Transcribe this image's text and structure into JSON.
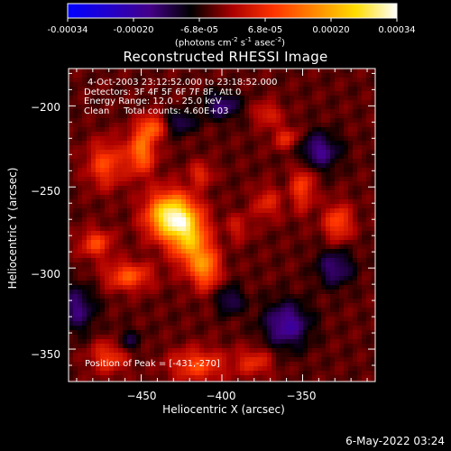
{
  "colorbar": {
    "tick_labels": [
      "-0.00034",
      "-0.00020",
      "-6.8e-05",
      "6.8e-05",
      "0.00020",
      "0.00034"
    ],
    "units": {
      "open": "(photons cm",
      "cm_exp": "-2",
      "s_part": " s",
      "s_exp": "-1",
      "asec_part": " asec",
      "asec_exp": "-2",
      "close": ")"
    },
    "colors": [
      "#0000ff",
      "#2200cc",
      "#440088",
      "#000000",
      "#aa0000",
      "#ff3300",
      "#ff8800",
      "#ffdd00",
      "#ffffff"
    ]
  },
  "chart_data": {
    "type": "heatmap",
    "title": "Reconstructed RHESSI Image",
    "xlabel": "Heliocentric X (arcsec)",
    "ylabel": "Heliocentric Y (arcsec)",
    "xlim": [
      -495,
      -305
    ],
    "ylim": [
      -370,
      -177
    ],
    "x_ticks": [
      -450,
      -400,
      -350
    ],
    "x_tick_labels": [
      "−450",
      "−400",
      "−350"
    ],
    "y_ticks": [
      -200,
      -250,
      -300,
      -350
    ],
    "y_tick_labels": [
      "−200",
      "−250",
      "−300",
      "−350"
    ],
    "value_range": [
      -0.00034,
      0.00034
    ],
    "units": "photons cm^-2 s^-1 asec^-2",
    "peak": {
      "x": -431,
      "y": -270,
      "value": 0.00034
    },
    "sources": [
      {
        "x": -432,
        "y": -268,
        "sx": 10,
        "sy": 10,
        "amp": 1.0
      },
      {
        "x": -420,
        "y": -282,
        "sx": 8,
        "sy": 12,
        "amp": 0.65
      },
      {
        "x": -410,
        "y": -300,
        "sx": 6,
        "sy": 9,
        "amp": 0.55
      },
      {
        "x": -450,
        "y": -228,
        "sx": 6,
        "sy": 10,
        "amp": 0.55
      },
      {
        "x": -443,
        "y": -213,
        "sx": 5,
        "sy": 5,
        "amp": 0.45
      },
      {
        "x": -472,
        "y": -236,
        "sx": 8,
        "sy": 10,
        "amp": 0.4
      },
      {
        "x": -458,
        "y": -305,
        "sx": 10,
        "sy": 6,
        "amp": 0.45
      },
      {
        "x": -478,
        "y": -285,
        "sx": 7,
        "sy": 6,
        "amp": 0.4
      },
      {
        "x": -413,
        "y": -242,
        "sx": 5,
        "sy": 5,
        "amp": 0.3
      },
      {
        "x": -350,
        "y": -250,
        "sx": 5,
        "sy": 10,
        "amp": 0.38
      },
      {
        "x": -328,
        "y": -272,
        "sx": 6,
        "sy": 8,
        "amp": 0.42
      },
      {
        "x": -360,
        "y": -220,
        "sx": 6,
        "sy": 5,
        "amp": 0.3
      },
      {
        "x": -372,
        "y": -205,
        "sx": 6,
        "sy": 5,
        "amp": 0.28
      },
      {
        "x": -415,
        "y": -360,
        "sx": 12,
        "sy": 7,
        "amp": 0.4
      },
      {
        "x": -380,
        "y": -358,
        "sx": 8,
        "sy": 6,
        "amp": 0.3
      },
      {
        "x": -470,
        "y": -355,
        "sx": 8,
        "sy": 7,
        "amp": 0.35
      },
      {
        "x": -372,
        "y": -260,
        "sx": 6,
        "sy": 7,
        "amp": 0.28
      },
      {
        "x": -390,
        "y": -275,
        "sx": 5,
        "sy": 6,
        "amp": 0.22
      }
    ],
    "negative_sources": [
      {
        "x": -360,
        "y": -335,
        "sx": 10,
        "sy": 10,
        "amp": -0.45
      },
      {
        "x": -330,
        "y": -300,
        "sx": 8,
        "sy": 8,
        "amp": -0.35
      },
      {
        "x": -340,
        "y": -228,
        "sx": 9,
        "sy": 8,
        "amp": -0.4
      },
      {
        "x": -400,
        "y": -200,
        "sx": 8,
        "sy": 6,
        "amp": -0.35
      },
      {
        "x": -425,
        "y": -210,
        "sx": 6,
        "sy": 5,
        "amp": -0.3
      },
      {
        "x": -490,
        "y": -325,
        "sx": 8,
        "sy": 10,
        "amp": -0.35
      },
      {
        "x": -395,
        "y": -320,
        "sx": 6,
        "sy": 6,
        "amp": -0.3
      },
      {
        "x": -458,
        "y": -345,
        "sx": 5,
        "sy": 5,
        "amp": -0.25
      }
    ]
  },
  "annotations": {
    "time_range": "4-Oct-2003 23:12:52.000 to 23:18:52.000",
    "detectors": "Detectors: 3F 4F 5F 6F 7F 8F, Att 0",
    "energy": "Energy Range: 12.0 - 25.0 keV",
    "clean": "Clean     Total counts: 4.60E+03",
    "peak_position": "Position of Peak = [-431,-270]"
  },
  "footer": "6-May-2022 03:24"
}
